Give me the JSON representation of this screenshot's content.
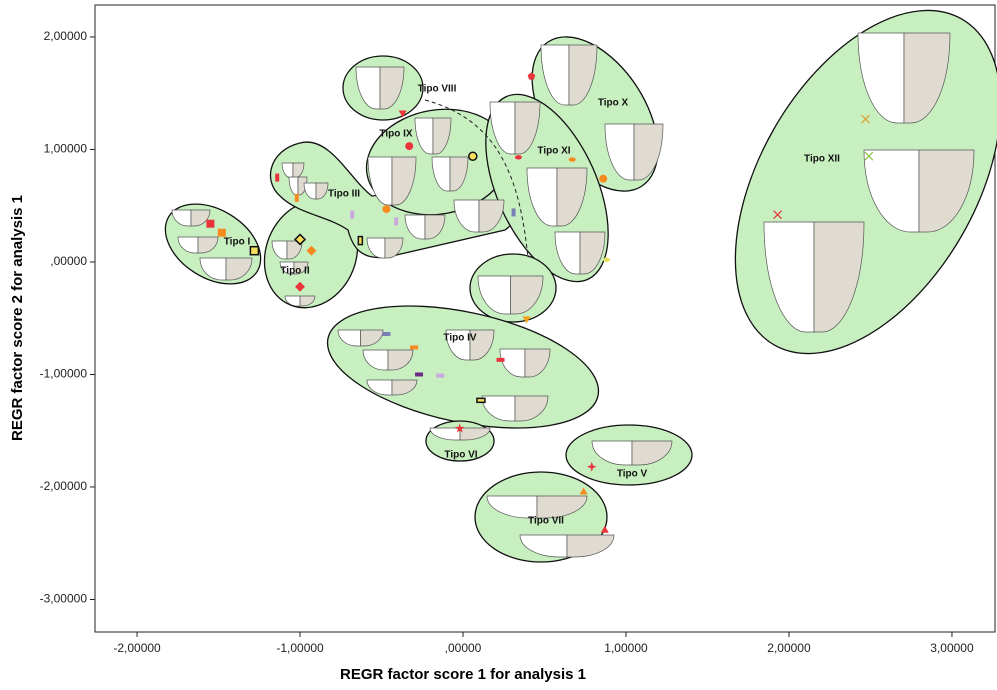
{
  "chart_data": {
    "type": "scatter",
    "xlabel": "REGR factor score   1 for analysis 1",
    "ylabel": "REGR factor score   2 for analysis 1",
    "xlim": [
      -2.258,
      3.264
    ],
    "ylim": [
      -3.289,
      2.284
    ],
    "xticks": [
      {
        "value": -2,
        "label": "-2,00000"
      },
      {
        "value": -1,
        "label": "-1,00000"
      },
      {
        "value": 0,
        "label": ",00000"
      },
      {
        "value": 1,
        "label": "1,00000"
      },
      {
        "value": 2,
        "label": "2,00000"
      },
      {
        "value": 3,
        "label": "3,00000"
      }
    ],
    "yticks": [
      {
        "value": 2,
        "label": "2,00000"
      },
      {
        "value": 1,
        "label": "1,00000"
      },
      {
        "value": 0,
        "label": ",00000"
      },
      {
        "value": -1,
        "label": "-1,00000"
      },
      {
        "value": -2,
        "label": "-2,00000"
      },
      {
        "value": -3,
        "label": "-3,00000"
      }
    ],
    "x": [
      -1.55,
      -1.48,
      -1.28,
      -1.0,
      -0.93,
      -1.0,
      -1.14,
      -1.02,
      -0.68,
      -0.63,
      -0.41,
      0.31,
      -0.33,
      0.06,
      -0.47,
      -0.37,
      0.34,
      0.67,
      0.86,
      0.88,
      0.42,
      1.93,
      2.47,
      2.49,
      0.39,
      -0.47,
      -0.3,
      -0.27,
      -0.14,
      0.23,
      0.11,
      -0.02,
      0.79,
      0.74,
      0.87
    ],
    "values": [
      0.34,
      0.26,
      0.1,
      0.2,
      0.1,
      -0.22,
      0.75,
      0.57,
      0.42,
      0.19,
      0.36,
      0.44,
      1.03,
      0.94,
      0.47,
      1.32,
      0.93,
      0.91,
      0.74,
      0.02,
      1.65,
      0.42,
      1.27,
      0.94,
      -0.51,
      -0.64,
      -0.76,
      -1.0,
      -1.01,
      -0.87,
      -1.23,
      -1.48,
      -1.82,
      -2.04,
      -2.38
    ],
    "colors": [
      "#e8343a",
      "#f58a1f",
      "#f5e05a",
      "#f5e05a",
      "#f58a1f",
      "#e8343a",
      "#e8343a",
      "#f58a1f",
      "#c9a8e0",
      "#f5e05a",
      "#c9a8e0",
      "#7a7fb5",
      "#e8343a",
      "#f5e05a",
      "#f58a1f",
      "#e8343a",
      "#e8343a",
      "#f58a1f",
      "#f58a1f",
      "#e6e060",
      "#e8343a",
      "#e8343a",
      "#e0a030",
      "#8ac040",
      "#f5a020",
      "#7a7fb5",
      "#f58a1f",
      "#6a2a8a",
      "#c9a8e0",
      "#e8343a",
      "#f5e05a",
      "#e8343a",
      "#e8343a",
      "#f58a1f",
      "#e8343a"
    ],
    "markers": [
      "square",
      "square",
      "square-outline",
      "diamond-outline",
      "diamond",
      "diamond",
      "bar",
      "bar",
      "bar",
      "bar-outline",
      "bar",
      "bar",
      "circle",
      "circle-outline",
      "circle",
      "triangle-down",
      "ellipse",
      "ellipse",
      "circle",
      "ellipse",
      "pentagon",
      "x",
      "x",
      "x",
      "triangle-down",
      "dash",
      "dash",
      "dash",
      "dash",
      "dash",
      "dash-outline",
      "star",
      "star4",
      "triangle",
      "triangle"
    ],
    "annotations": [
      "Tipo I",
      "Tipo II",
      "Tipo III",
      "Tipo VIII",
      "Tipo IX",
      "Tipo X",
      "Tipo XI",
      "Tipo XII",
      "Tipo IV",
      "Tipo VI",
      "Tipo V",
      "Tipo VII"
    ]
  }
}
